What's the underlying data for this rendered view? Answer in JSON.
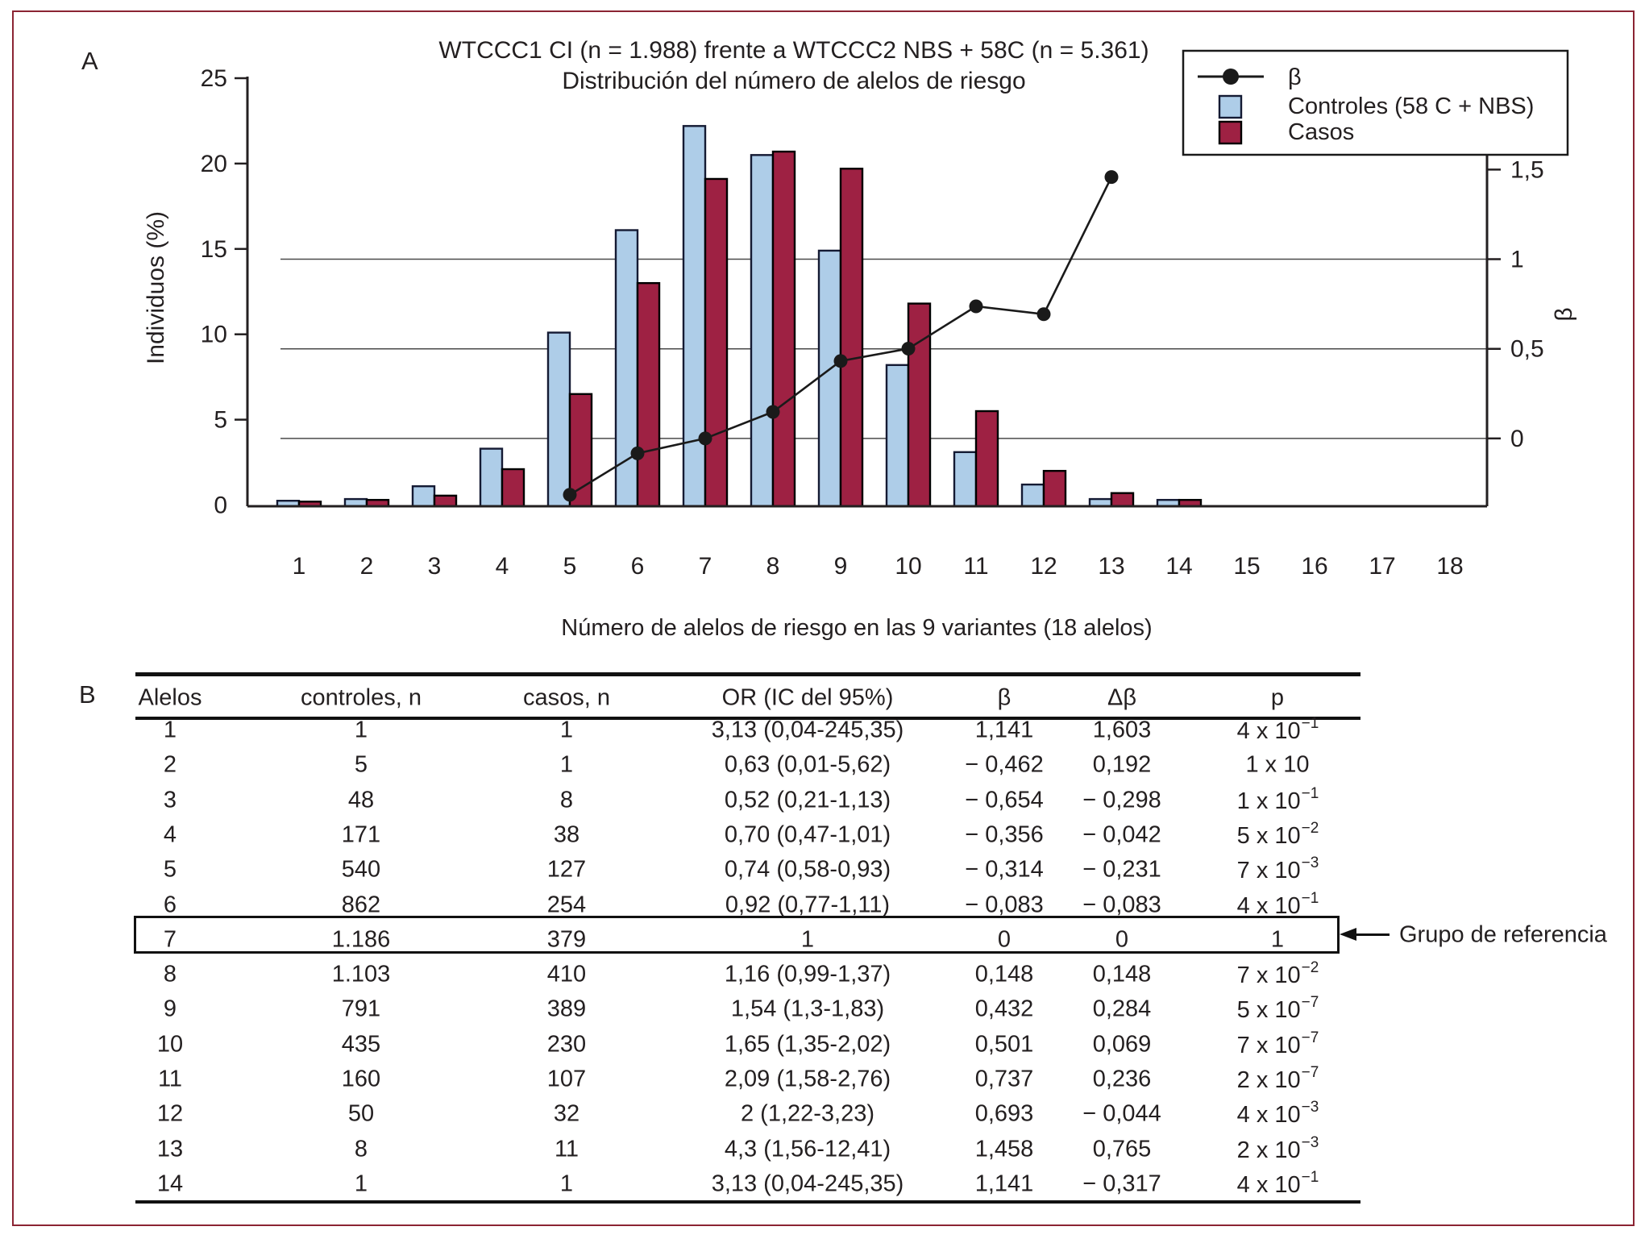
{
  "figure": {
    "panel_a": "A",
    "panel_b": "B",
    "frame_color": "#8b2433"
  },
  "chart_data": {
    "type": "bar+line",
    "title": "WTCCC1 CI (n = 1.988) frente a WTCCC2 NBS + 58C (n = 5.361)",
    "subtitle": "Distribución del número de alelos de riesgo",
    "xlabel": "Número de alelos de riesgo en las 9 variantes (18 alelos)",
    "ylabel_left": "Individuos (%)",
    "ylabel_right": "β",
    "x_categories": [
      "1",
      "2",
      "3",
      "4",
      "5",
      "6",
      "7",
      "8",
      "9",
      "10",
      "11",
      "12",
      "13",
      "14",
      "15",
      "16",
      "17",
      "18"
    ],
    "ylim_left": [
      0,
      25
    ],
    "yticks_left": [
      0,
      5,
      10,
      15,
      20,
      25
    ],
    "yticks_right_values": [
      0,
      0.5,
      1,
      1.5
    ],
    "yticks_right_labels": [
      "0",
      "0,5",
      "1",
      "1,5"
    ],
    "gridlines_beta": [
      0,
      0.5,
      1
    ],
    "grid_on": true,
    "legend_position": "top-right",
    "series": [
      {
        "name": "Controles (58 C + NBS)",
        "type": "bar",
        "color": "#aecde8",
        "stroke": "#141a33",
        "values": [
          0.25,
          0.35,
          1.1,
          3.3,
          10.1,
          16.1,
          22.2,
          20.5,
          14.9,
          8.2,
          3.1,
          1.2,
          0.35,
          0.3
        ]
      },
      {
        "name": "Casos",
        "type": "bar",
        "color": "#9e2143",
        "stroke": "#000000",
        "values": [
          0.2,
          0.3,
          0.55,
          2.1,
          6.5,
          13.0,
          19.1,
          20.7,
          19.7,
          11.8,
          5.5,
          2.0,
          0.7,
          0.3
        ]
      },
      {
        "name": "β",
        "type": "line",
        "color": "#1a1a1a",
        "x_start": 5,
        "values": [
          -0.314,
          -0.083,
          0,
          0.148,
          0.432,
          0.501,
          0.737,
          0.693,
          1.458
        ]
      }
    ]
  },
  "table": {
    "headers": [
      "Alelos",
      "controles, n",
      "casos, n",
      "OR (IC del 95%)",
      "β",
      "Δβ",
      "p"
    ],
    "rows": [
      {
        "alelos": "1",
        "controles": "1",
        "casos": "1",
        "or": "3,13 (0,04-245,35)",
        "beta": "1,141",
        "dbeta": "1,603",
        "p_base": "4 x 10",
        "p_exp": "−1"
      },
      {
        "alelos": "2",
        "controles": "5",
        "casos": "1",
        "or": "0,63 (0,01-5,62)",
        "beta": "− 0,462",
        "dbeta": "0,192",
        "p_base": "1 x 10",
        "p_exp": ""
      },
      {
        "alelos": "3",
        "controles": "48",
        "casos": "8",
        "or": "0,52 (0,21-1,13)",
        "beta": "− 0,654",
        "dbeta": "− 0,298",
        "p_base": "1 x 10",
        "p_exp": "−1"
      },
      {
        "alelos": "4",
        "controles": "171",
        "casos": "38",
        "or": "0,70 (0,47-1,01)",
        "beta": "− 0,356",
        "dbeta": "− 0,042",
        "p_base": "5 x 10",
        "p_exp": "−2"
      },
      {
        "alelos": "5",
        "controles": "540",
        "casos": "127",
        "or": "0,74 (0,58-0,93)",
        "beta": "− 0,314",
        "dbeta": "− 0,231",
        "p_base": "7 x 10",
        "p_exp": "−3"
      },
      {
        "alelos": "6",
        "controles": "862",
        "casos": "254",
        "or": "0,92 (0,77-1,11)",
        "beta": "− 0,083",
        "dbeta": "− 0,083",
        "p_base": "4 x 10",
        "p_exp": "−1"
      },
      {
        "alelos": "7",
        "controles": "1.186",
        "casos": "379",
        "or": "1",
        "beta": "0",
        "dbeta": "0",
        "p_base": "1",
        "p_exp": ""
      },
      {
        "alelos": "8",
        "controles": "1.103",
        "casos": "410",
        "or": "1,16 (0,99-1,37)",
        "beta": "0,148",
        "dbeta": "0,148",
        "p_base": "7 x 10",
        "p_exp": "−2"
      },
      {
        "alelos": "9",
        "controles": "791",
        "casos": "389",
        "or": "1,54 (1,3-1,83)",
        "beta": "0,432",
        "dbeta": "0,284",
        "p_base": "5 x 10",
        "p_exp": "−7"
      },
      {
        "alelos": "10",
        "controles": "435",
        "casos": "230",
        "or": "1,65 (1,35-2,02)",
        "beta": "0,501",
        "dbeta": "0,069",
        "p_base": "7 x 10",
        "p_exp": "−7"
      },
      {
        "alelos": "11",
        "controles": "160",
        "casos": "107",
        "or": "2,09 (1,58-2,76)",
        "beta": "0,737",
        "dbeta": "0,236",
        "p_base": "2 x 10",
        "p_exp": "−7"
      },
      {
        "alelos": "12",
        "controles": "50",
        "casos": "32",
        "or": "2 (1,22-3,23)",
        "beta": "0,693",
        "dbeta": "− 0,044",
        "p_base": "4 x 10",
        "p_exp": "−3"
      },
      {
        "alelos": "13",
        "controles": "8",
        "casos": "11",
        "or": "4,3 (1,56-12,41)",
        "beta": "1,458",
        "dbeta": "0,765",
        "p_base": "2 x 10",
        "p_exp": "−3"
      },
      {
        "alelos": "14",
        "controles": "1",
        "casos": "1",
        "or": "3,13 (0,04-245,35)",
        "beta": "1,141",
        "dbeta": "− 0,317",
        "p_base": "4 x 10",
        "p_exp": "−1"
      }
    ],
    "reference_row": "7",
    "reference_label": "Grupo de referencia"
  }
}
